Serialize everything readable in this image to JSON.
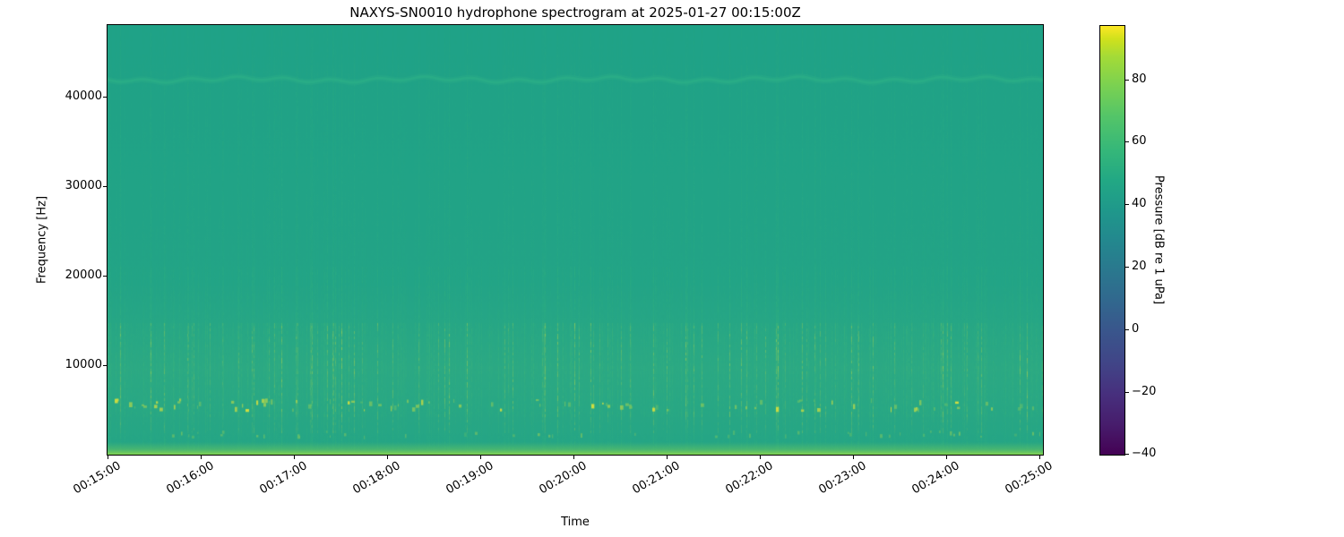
{
  "figure": {
    "title": "NAXYS-SN0010 hydrophone spectrogram at 2025-01-27 00:15:00Z",
    "xlabel": "Time",
    "ylabel": "Frequency [Hz]"
  },
  "chart_data": {
    "type": "heatmap",
    "subtype": "spectrogram",
    "title": "NAXYS-SN0010 hydrophone spectrogram at 2025-01-27 00:15:00Z",
    "xlabel": "Time",
    "ylabel": "Frequency [Hz]",
    "x_tick_labels": [
      "00:15:00",
      "00:16:00",
      "00:17:00",
      "00:18:00",
      "00:19:00",
      "00:20:00",
      "00:21:00",
      "00:22:00",
      "00:23:00",
      "00:24:00",
      "00:25:00"
    ],
    "x_tick_interval_seconds": 60,
    "x_tick_rotation_deg": 30,
    "y_ticks_hz": [
      40000,
      30000,
      20000,
      10000
    ],
    "y_tick_labels": [
      "40000",
      "30000",
      "20000",
      "10000"
    ],
    "ylim_hz": [
      0,
      48000
    ],
    "grid": false,
    "legend": "none",
    "colorbar": {
      "label": "Pressure [dB re 1 uPa]",
      "position": "right",
      "colormap": "viridis",
      "vmin_db": -40,
      "vmax_db": 97,
      "ticks_db": [
        80,
        60,
        40,
        20,
        0,
        -20,
        -40
      ],
      "tick_labels": [
        "80",
        "60",
        "40",
        "20",
        "0",
        "−20",
        "−40"
      ]
    },
    "content_summary": {
      "background_level_db": 47,
      "description": "Nearly uniform teal field (~45-50 dB re 1 uPa) covering 0-48 kHz over 00:15:00-00:25:00. Many faint vertical broadband transient streaks at roughly second-scale spacing; streaks become denser, lighter green below ~15 kHz. A row of bright yellow-green impulsive spots sits near 5-6 kHz. A thin brighter green-yellow band runs along the bottom edge below ~1 kHz, and a faint wavy lighter line crosses near 42 kHz.",
      "render": {
        "bg": "#1fa287",
        "streak_color": "#3dbd75",
        "streak_hot": "#cadf3e",
        "spot_hot": "#e6e338",
        "wavy_color": "#2eb187",
        "wavy_band_frac": 0.127,
        "spot_row_frac": 0.885,
        "bottom_band_color": "#82d252",
        "seed": 42
      }
    }
  }
}
